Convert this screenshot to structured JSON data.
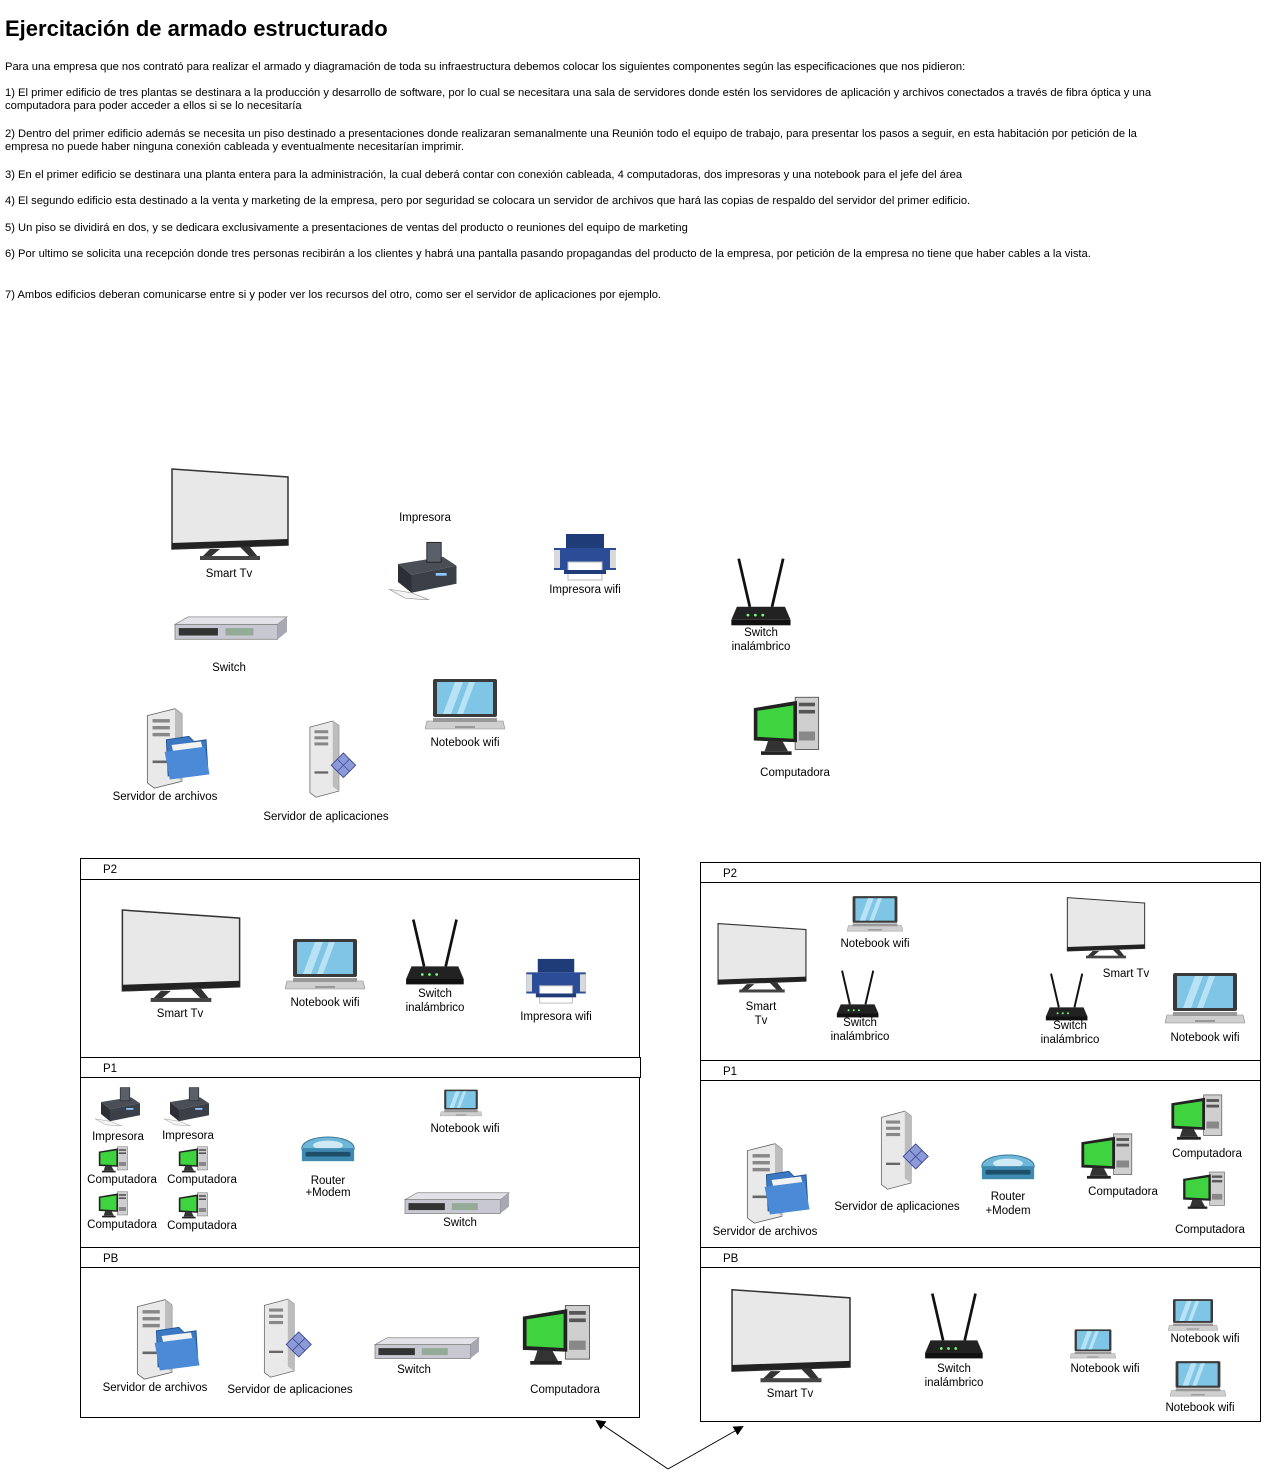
{
  "page": {
    "title": "Ejercitación de armado estructurado",
    "intro": "Para una empresa que  nos contrató para realizar el armado y diagramación de toda su infraestructura debemos colocar los siguientes componentes según las especificaciones que nos pidieron:",
    "requirements": [
      "1) El primer edificio de tres plantas se destinara a la producción y desarrollo de software, por lo cual se necesitara una sala de servidores donde estén los servidores de aplicación y archivos conectados a través de fibra óptica y una computadora para poder acceder a ellos si se lo necesitaría",
      "2) Dentro del primer edificio además se necesita un piso destinado a presentaciones donde realizaran semanalmente una Reunión todo el equipo de trabajo, para presentar los pasos a seguir, en esta habitación por petición de la empresa no puede haber ninguna conexión cableada y eventualmente necesitarían imprimir.",
      "3) En el primer edificio se destinara una planta entera para la administración, la cual deberá contar con conexión cableada, 4 computadoras, dos impresoras y una notebook para el jefe del área",
      "4) El segundo edificio esta destinado a la venta y marketing de la empresa, pero por seguridad se colocara un servidor de archivos que hará las copias de respaldo del servidor del primer edificio.",
      "5) Un piso se dividirá en dos, y se dedicara exclusivamente a presentaciones de ventas del producto o reuniones del equipo de marketing",
      "6) Por ultimo se solicita una recepción donde tres personas recibirán a los clientes y habrá una pantalla pasando propagandas del producto de la empresa, por petición de la empresa no tiene que haber cables a la vista.",
      "7) Ambos edificios deberan comunicarse entre si y poder ver los recursos del otro, como ser el servidor de aplicaciones por ejemplo."
    ]
  },
  "palette": {
    "smart_tv": "Smart Tv",
    "impresora": "Impresora",
    "impresora_wifi": "Impresora wifi",
    "switch_inalambrico": "Switch\ninalámbrico",
    "switch": "Switch",
    "notebook_wifi": "Notebook wifi",
    "computadora": "Computadora",
    "servidor_archivos": "Servidor de archivos",
    "servidor_aplicaciones": "Servidor de aplicaciones"
  },
  "building1": {
    "floor_p2": {
      "name": "P2",
      "smart_tv": "Smart Tv",
      "notebook": "Notebook wifi",
      "switch_wifi": "Switch\ninalámbrico",
      "printer_wifi": "Impresora wifi"
    },
    "floor_p1": {
      "name": "P1",
      "printer_1": "Impresora",
      "printer_2": "Impresora",
      "pc_1": "Computadora",
      "pc_2": "Computadora",
      "pc_3": "Computadora",
      "pc_4": "Computadora",
      "router": "Router\n+Modem",
      "notebook": "Notebook wifi",
      "switch": "Switch"
    },
    "floor_pb": {
      "name": "PB",
      "file_server": "Servidor de archivos",
      "app_server": "Servidor de aplicaciones",
      "switch": "Switch",
      "pc": "Computadora"
    }
  },
  "building2": {
    "floor_p2": {
      "name": "P2",
      "smart_tv_1": "Smart\nTv",
      "notebook_1": "Notebook wifi",
      "switch_wifi_1": "Switch\ninalámbrico",
      "smart_tv_2": "Smart Tv",
      "switch_wifi_2": "Switch\ninalámbrico",
      "notebook_2": "Notebook wifi"
    },
    "floor_p1": {
      "name": "P1",
      "file_server": "Servidor de archivos",
      "app_server": "Servidor de aplicaciones",
      "router": "Router\n+Modem",
      "pc_1": "Computadora",
      "pc_2": "Computadora",
      "pc_3": "Computadora"
    },
    "floor_pb": {
      "name": "PB",
      "smart_tv": "Smart Tv",
      "switch_wifi": "Switch\ninalámbrico",
      "notebook_1": "Notebook wifi",
      "notebook_2": "Notebook wifi",
      "notebook_3": "Notebook wifi"
    }
  },
  "colors": {
    "screen_green": "#3fd43f",
    "tv_screen": "#e6e6e6",
    "laptop_screen": "#7fc6e6",
    "server_folder": "#3a78c2"
  }
}
